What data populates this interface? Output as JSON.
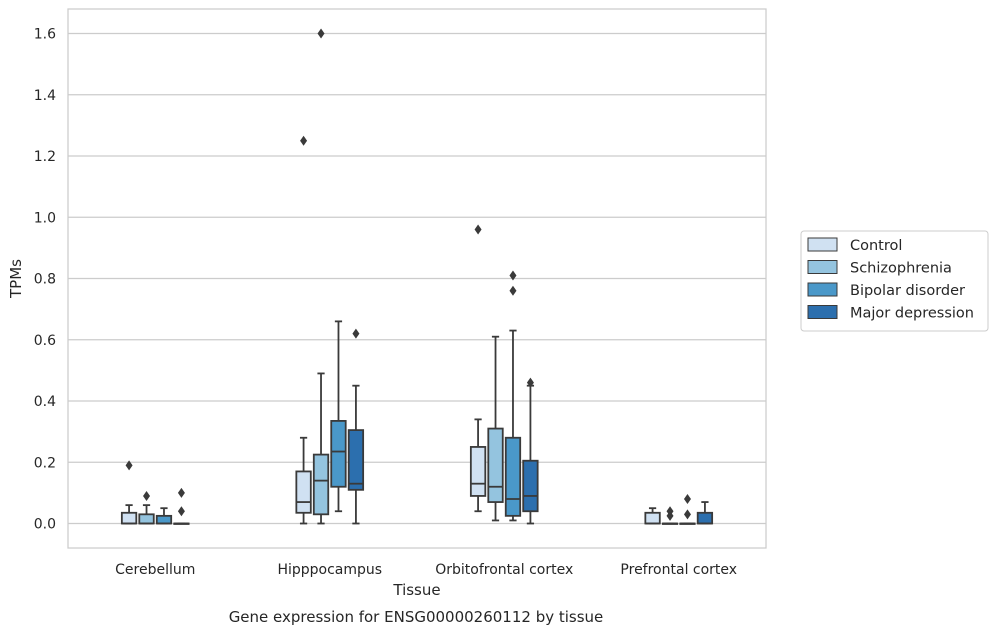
{
  "chart_data": {
    "type": "box",
    "title": "",
    "caption": "Gene expression for ENSG00000260112 by tissue",
    "xlabel": "Tissue",
    "ylabel": "TPMs",
    "ylim": [
      -0.08,
      1.68
    ],
    "yticks": [
      0.0,
      0.2,
      0.4,
      0.6,
      0.8,
      1.0,
      1.2,
      1.4,
      1.6
    ],
    "ytick_labels": [
      "0.0",
      "0.2",
      "0.4",
      "0.6",
      "0.8",
      "1.0",
      "1.2",
      "1.4",
      "1.6"
    ],
    "grid": "horizontal",
    "legend_position": "right",
    "categories": [
      "Cerebellum",
      "Hipppocampus",
      "Orbitofrontal cortex",
      "Prefrontal cortex"
    ],
    "series": [
      {
        "name": "Control",
        "color": "#d0e1f2",
        "boxes": [
          {
            "whislo": 0.0,
            "q1": 0.0,
            "med": 0.0,
            "q3": 0.035,
            "whishi": 0.06,
            "fliers": [
              0.19
            ]
          },
          {
            "whislo": 0.0,
            "q1": 0.035,
            "med": 0.07,
            "q3": 0.17,
            "whishi": 0.28,
            "fliers": [
              1.25
            ]
          },
          {
            "whislo": 0.04,
            "q1": 0.09,
            "med": 0.13,
            "q3": 0.25,
            "whishi": 0.34,
            "fliers": [
              0.96
            ]
          },
          {
            "whislo": 0.0,
            "q1": 0.0,
            "med": 0.0,
            "q3": 0.035,
            "whishi": 0.05,
            "fliers": []
          }
        ]
      },
      {
        "name": "Schizophrenia",
        "color": "#94c4df",
        "boxes": [
          {
            "whislo": 0.0,
            "q1": 0.0,
            "med": 0.0,
            "q3": 0.03,
            "whishi": 0.06,
            "fliers": [
              0.09
            ]
          },
          {
            "whislo": 0.0,
            "q1": 0.03,
            "med": 0.14,
            "q3": 0.225,
            "whishi": 0.49,
            "fliers": [
              1.6
            ]
          },
          {
            "whislo": 0.01,
            "q1": 0.07,
            "med": 0.12,
            "q3": 0.31,
            "whishi": 0.61,
            "fliers": []
          },
          {
            "whislo": 0.0,
            "q1": 0.0,
            "med": 0.0,
            "q3": 0.0,
            "whishi": 0.0,
            "fliers": [
              0.025,
              0.04
            ]
          }
        ]
      },
      {
        "name": "Bipolar disorder",
        "color": "#4a98c9",
        "boxes": [
          {
            "whislo": 0.0,
            "q1": 0.0,
            "med": 0.0,
            "q3": 0.025,
            "whishi": 0.05,
            "fliers": []
          },
          {
            "whislo": 0.04,
            "q1": 0.12,
            "med": 0.235,
            "q3": 0.335,
            "whishi": 0.66,
            "fliers": []
          },
          {
            "whislo": 0.01,
            "q1": 0.025,
            "med": 0.08,
            "q3": 0.28,
            "whishi": 0.63,
            "fliers": [
              0.76,
              0.81
            ]
          },
          {
            "whislo": 0.0,
            "q1": 0.0,
            "med": 0.0,
            "q3": 0.0,
            "whishi": 0.0,
            "fliers": [
              0.03,
              0.08
            ]
          }
        ]
      },
      {
        "name": "Major depression",
        "color": "#2c6fae",
        "boxes": [
          {
            "whislo": 0.0,
            "q1": 0.0,
            "med": 0.0,
            "q3": 0.0,
            "whishi": 0.0,
            "fliers": [
              0.04,
              0.1
            ]
          },
          {
            "whislo": 0.0,
            "q1": 0.11,
            "med": 0.13,
            "q3": 0.305,
            "whishi": 0.45,
            "fliers": [
              0.62
            ]
          },
          {
            "whislo": 0.0,
            "q1": 0.04,
            "med": 0.09,
            "q3": 0.205,
            "whishi": 0.45,
            "fliers": [
              0.46
            ]
          },
          {
            "whislo": 0.0,
            "q1": 0.0,
            "med": 0.0,
            "q3": 0.035,
            "whishi": 0.07,
            "fliers": []
          }
        ]
      }
    ]
  }
}
